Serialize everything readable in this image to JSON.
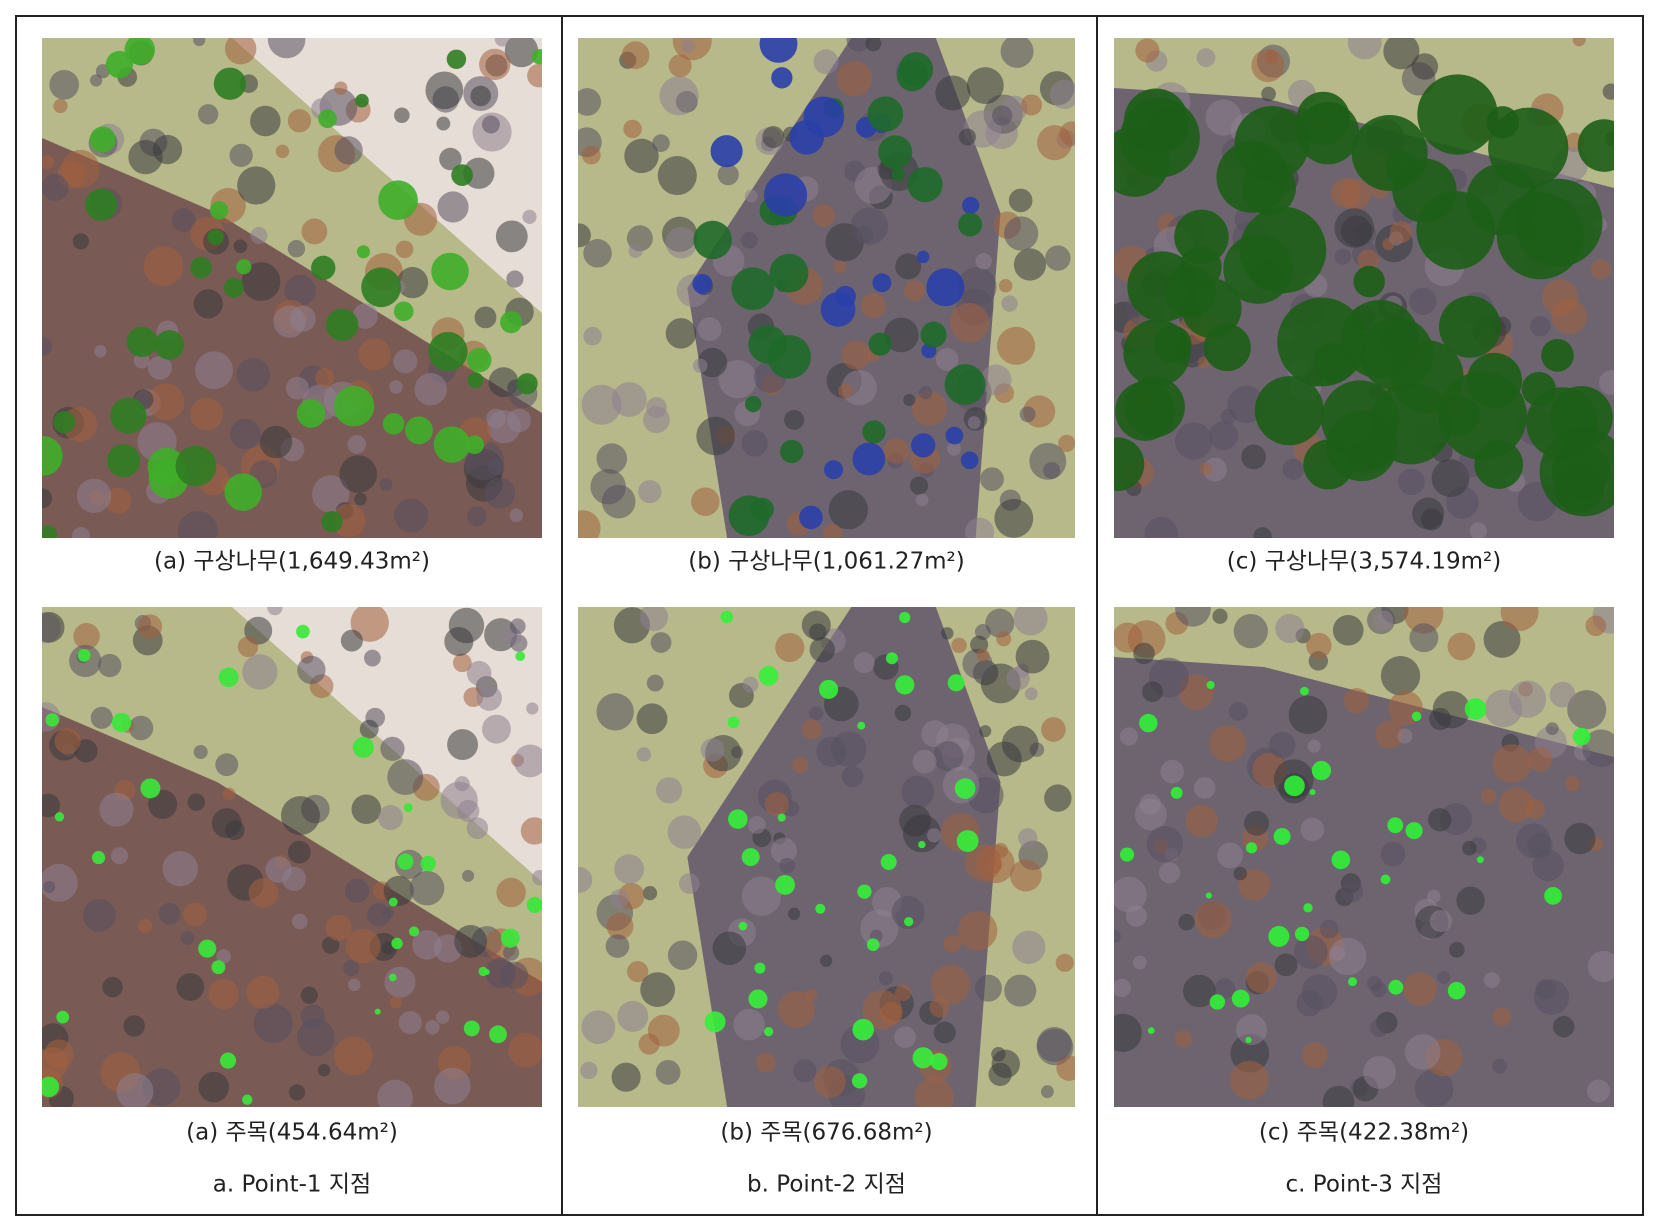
{
  "figure": {
    "columns": [
      {
        "top_caption": "(a) 구상나무(1,649.43m²)",
        "bottom_caption": "(a) 주목(454.64m²)",
        "point_label": "a. Point-1 지점"
      },
      {
        "top_caption": "(b) 구상나무(1,061.27m²)",
        "bottom_caption": "(b) 주목(676.68m²)",
        "point_label": "b. Point-2 지점"
      },
      {
        "top_caption": "(c) 구상나무(3,574.19m²)",
        "bottom_caption": "(c) 주목(422.38m²)",
        "point_label": "c. Point-3 지점"
      }
    ]
  }
}
